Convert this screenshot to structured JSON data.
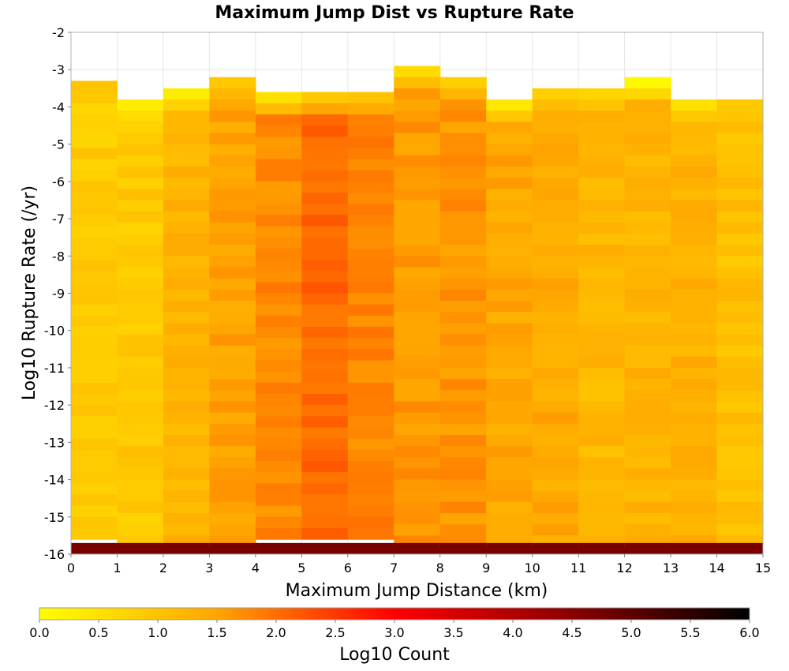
{
  "chart_data": {
    "type": "heatmap",
    "title": "Maximum Jump Dist vs Rupture Rate",
    "xlabel": "Maximum Jump Distance (km)",
    "ylabel": "Log10 Rupture Rate (/yr)",
    "xlim": [
      0,
      15
    ],
    "ylim": [
      -16,
      -2
    ],
    "x_ticks": [
      "0",
      "1",
      "2",
      "3",
      "4",
      "5",
      "6",
      "7",
      "8",
      "9",
      "10",
      "11",
      "12",
      "13",
      "14",
      "15"
    ],
    "y_ticks": [
      "-2",
      "-3",
      "-4",
      "-5",
      "-6",
      "-7",
      "-8",
      "-9",
      "-10",
      "-11",
      "-12",
      "-13",
      "-14",
      "-15",
      "-16"
    ],
    "x_bin_width": 1,
    "y_bin_width": 0.3,
    "grid": true,
    "colorbar": {
      "label": "Log10 Count",
      "min": 0,
      "max": 6,
      "ticks": [
        "0.0",
        "0.5",
        "1.0",
        "1.5",
        "2.0",
        "2.5",
        "3.0",
        "3.5",
        "4.0",
        "4.5",
        "5.0",
        "5.5",
        "6.0"
      ],
      "colors": [
        "#ffff00",
        "#ffa500",
        "#ff0000",
        "#8b0000",
        "#000000"
      ],
      "color_stops": [
        0,
        1.5,
        3.0,
        4.5,
        6.0
      ]
    },
    "series": [
      {
        "x": 0,
        "y_top": -3.3,
        "top_value": 1.0,
        "level_value": 0.85,
        "bottom_value": 4.7
      },
      {
        "x": 1,
        "y_top": -3.8,
        "top_value": 0.3,
        "level_value": 0.9,
        "bottom_value": 4.7
      },
      {
        "x": 2,
        "y_top": -3.5,
        "top_value": 0.3,
        "level_value": 1.25,
        "bottom_value": 4.7
      },
      {
        "x": 3,
        "y_top": -3.2,
        "top_value": 0.9,
        "level_value": 1.5,
        "bottom_value": 4.7
      },
      {
        "x": 4,
        "y_top": -3.6,
        "top_value": 0.5,
        "level_value": 1.75,
        "bottom_value": 4.7
      },
      {
        "x": 5,
        "y_top": -3.6,
        "top_value": 0.9,
        "level_value": 2.05,
        "bottom_value": 4.7
      },
      {
        "x": 6,
        "y_top": -3.6,
        "top_value": 1.0,
        "level_value": 1.8,
        "bottom_value": 4.7
      },
      {
        "x": 7,
        "y_top": -2.9,
        "top_value": 0.6,
        "level_value": 1.6,
        "bottom_value": 4.7
      },
      {
        "x": 8,
        "y_top": -3.2,
        "top_value": 0.8,
        "level_value": 1.65,
        "bottom_value": 4.7
      },
      {
        "x": 9,
        "y_top": -3.8,
        "top_value": 0.4,
        "level_value": 1.45,
        "bottom_value": 4.7
      },
      {
        "x": 10,
        "y_top": -3.5,
        "top_value": 0.8,
        "level_value": 1.4,
        "bottom_value": 4.7
      },
      {
        "x": 11,
        "y_top": -3.5,
        "top_value": 0.7,
        "level_value": 1.2,
        "bottom_value": 4.7
      },
      {
        "x": 12,
        "y_top": -3.2,
        "top_value": 0.1,
        "level_value": 1.25,
        "bottom_value": 4.7
      },
      {
        "x": 13,
        "y_top": -3.8,
        "top_value": 0.5,
        "level_value": 1.3,
        "bottom_value": 4.7
      },
      {
        "x": 14,
        "y_top": -3.8,
        "top_value": 0.9,
        "level_value": 1.05,
        "bottom_value": 4.7
      }
    ]
  }
}
